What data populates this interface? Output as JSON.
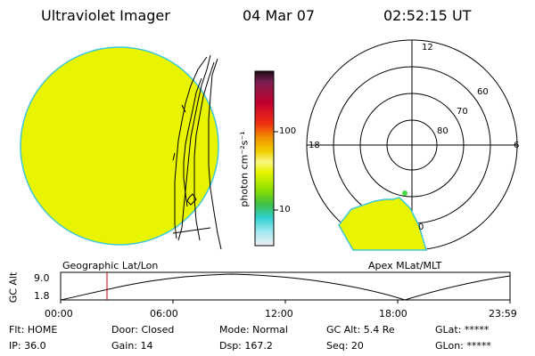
{
  "header": {
    "title": "Ultraviolet Imager",
    "date": "04 Mar 07",
    "time": "02:52:15 UT"
  },
  "colorbar": {
    "unit_label": "photon cm⁻²s⁻¹",
    "ticks": [
      "100",
      "10"
    ]
  },
  "polar": {
    "mlt_labels": [
      "12",
      "18",
      "6",
      "0"
    ],
    "lat_labels": [
      "60",
      "70",
      "80"
    ]
  },
  "timeline": {
    "left_label": "Geographic Lat/Lon",
    "right_label": "Apex MLat/MLT",
    "ylabel": "GC Alt",
    "yticks": [
      "9.0",
      "1.8"
    ],
    "xticks": [
      "00:00",
      "06:00",
      "12:00",
      "18:00",
      "23:59"
    ],
    "current_marker_time": "02:52"
  },
  "status": {
    "flt": "Flt: HOME",
    "ip": "IP: 36.0",
    "door": "Door: Closed",
    "gain": "Gain: 14",
    "mode": "Mode: Normal",
    "dsp": "Dsp:  167.2",
    "gc_alt": "GC Alt: 5.4 Re",
    "seq": "Seq: 20",
    "glat": "GLat: *****",
    "glon": "GLon: *****"
  },
  "colors": {
    "fill": "#e8f400",
    "edge": "#3ec8d8",
    "marker": "#c00000",
    "dot": "#44dd44"
  }
}
